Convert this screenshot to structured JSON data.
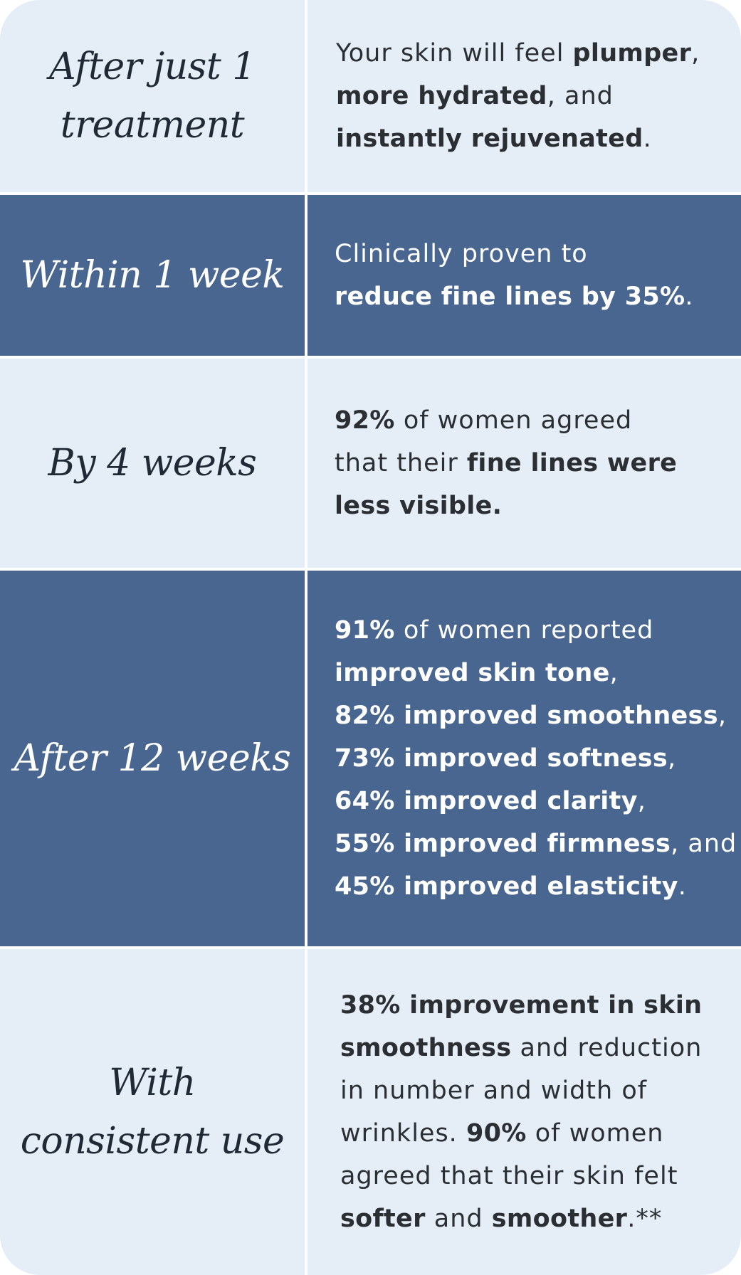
{
  "rows": [
    {
      "label": [
        "After just 1",
        "treatment"
      ],
      "lines": [
        [
          {
            "t": "Your skin will feel ",
            "b": false
          },
          {
            "t": "plumper",
            "b": true
          },
          {
            "t": ",",
            "b": false
          }
        ],
        [
          {
            "t": "more hydrated",
            "b": true
          },
          {
            "t": ", and",
            "b": false
          }
        ],
        [
          {
            "t": "instantly rejuvenated",
            "b": true
          },
          {
            "t": ".",
            "b": false
          }
        ]
      ]
    },
    {
      "label": [
        "Within 1 week"
      ],
      "lines": [
        [
          {
            "t": "Clinically proven to",
            "b": false
          }
        ],
        [
          {
            "t": "reduce fine lines by 35%",
            "b": true
          },
          {
            "t": ".",
            "b": false
          }
        ]
      ]
    },
    {
      "label": [
        "By 4 weeks"
      ],
      "lines": [
        [
          {
            "t": "92%",
            "b": true
          },
          {
            "t": " of women agreed",
            "b": false
          }
        ],
        [
          {
            "t": "that their ",
            "b": false
          },
          {
            "t": "fine lines were",
            "b": true
          }
        ],
        [
          {
            "t": "less visible.",
            "b": true
          }
        ]
      ]
    },
    {
      "label": [
        "After 12 weeks"
      ],
      "lines": [
        [
          {
            "t": "91%",
            "b": true
          },
          {
            "t": " of women reported",
            "b": false
          }
        ],
        [
          {
            "t": "improved skin tone",
            "b": true
          },
          {
            "t": ",",
            "b": false
          }
        ],
        [
          {
            "t": "82% improved smoothness",
            "b": true
          },
          {
            "t": ",",
            "b": false
          }
        ],
        [
          {
            "t": "73% improved softness",
            "b": true
          },
          {
            "t": ",",
            "b": false
          }
        ],
        [
          {
            "t": "64% improved clarity",
            "b": true
          },
          {
            "t": ",",
            "b": false
          }
        ],
        [
          {
            "t": "55% improved firmness",
            "b": true
          },
          {
            "t": ", and",
            "b": false
          }
        ],
        [
          {
            "t": "45% improved elasticity",
            "b": true
          },
          {
            "t": ".",
            "b": false
          }
        ]
      ]
    },
    {
      "label": [
        "With",
        "consistent use"
      ],
      "lines": [
        [
          {
            "t": "38% improvement in skin",
            "b": true
          }
        ],
        [
          {
            "t": "smoothness",
            "b": true
          },
          {
            "t": " and reduction",
            "b": false
          }
        ],
        [
          {
            "t": "in number and width of",
            "b": false
          }
        ],
        [
          {
            "t": "wrinkles. ",
            "b": false
          },
          {
            "t": "90%",
            "b": true
          },
          {
            "t": " of women",
            "b": false
          }
        ],
        [
          {
            "t": "agreed that their skin felt",
            "b": false
          }
        ],
        [
          {
            "t": "softer",
            "b": true
          },
          {
            "t": " and ",
            "b": false
          },
          {
            "t": "smoother",
            "b": true
          },
          {
            "t": ".**",
            "b": false
          }
        ]
      ]
    }
  ],
  "colors": {
    "light_background": "#e5eef6",
    "dark_background": "#48668f",
    "divider": "#ffffff",
    "dark_text": "#2b2f33",
    "light_text": "#ffffff"
  }
}
